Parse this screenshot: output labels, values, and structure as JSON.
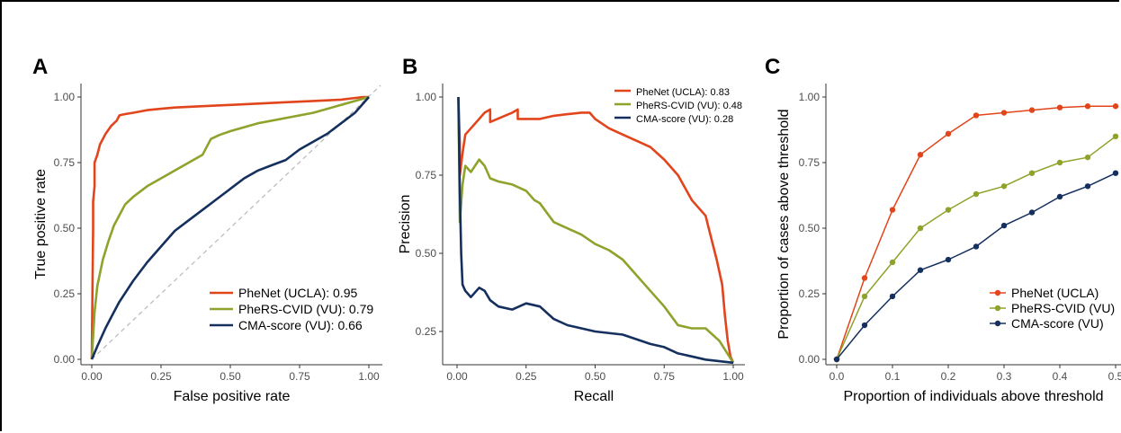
{
  "colors": {
    "phenet": "#e2451c",
    "pherscvid": "#8ea32b",
    "cma": "#15305e",
    "diag": "#bdbdbd"
  },
  "chart_data": [
    {
      "panel": "A",
      "type": "line",
      "xlabel": "False positive rate",
      "ylabel": "True positive rate",
      "xlim": [
        0,
        1
      ],
      "ylim": [
        0,
        1
      ],
      "xticks": [
        "0.00",
        "0.25",
        "0.50",
        "0.75",
        "1.00"
      ],
      "yticks": [
        "0.00",
        "0.25",
        "0.50",
        "0.75",
        "1.00"
      ],
      "legend_position": "bottom-right",
      "reference_line": "diagonal dashed",
      "series": [
        {
          "name": "PheNet (UCLA): 0.95",
          "color": "#e2451c",
          "x": [
            0,
            0.005,
            0.005,
            0.01,
            0.01,
            0.02,
            0.03,
            0.05,
            0.07,
            0.09,
            0.1,
            0.12,
            0.15,
            0.2,
            0.25,
            0.3,
            0.4,
            0.5,
            0.6,
            0.7,
            0.8,
            0.9,
            0.98,
            1.0
          ],
          "y": [
            0,
            0.5,
            0.6,
            0.66,
            0.75,
            0.78,
            0.82,
            0.86,
            0.89,
            0.91,
            0.93,
            0.935,
            0.94,
            0.95,
            0.955,
            0.96,
            0.965,
            0.97,
            0.975,
            0.98,
            0.985,
            0.99,
            1.0,
            1.0
          ]
        },
        {
          "name": "PheRS-CVID (VU): 0.79",
          "color": "#8ea32b",
          "x": [
            0,
            0.01,
            0.02,
            0.04,
            0.06,
            0.08,
            0.1,
            0.12,
            0.15,
            0.2,
            0.25,
            0.3,
            0.35,
            0.4,
            0.43,
            0.46,
            0.5,
            0.6,
            0.7,
            0.8,
            0.9,
            1.0
          ],
          "y": [
            0,
            0.18,
            0.28,
            0.38,
            0.45,
            0.51,
            0.55,
            0.59,
            0.62,
            0.66,
            0.69,
            0.72,
            0.75,
            0.78,
            0.84,
            0.855,
            0.87,
            0.9,
            0.92,
            0.94,
            0.97,
            1.0
          ]
        },
        {
          "name": "CMA-score (VU): 0.66",
          "color": "#15305e",
          "x": [
            0,
            0.02,
            0.05,
            0.08,
            0.1,
            0.15,
            0.2,
            0.25,
            0.3,
            0.35,
            0.4,
            0.45,
            0.5,
            0.55,
            0.6,
            0.65,
            0.7,
            0.75,
            0.8,
            0.85,
            0.9,
            0.95,
            1.0
          ],
          "y": [
            0,
            0.05,
            0.12,
            0.18,
            0.22,
            0.3,
            0.37,
            0.43,
            0.49,
            0.53,
            0.57,
            0.61,
            0.65,
            0.69,
            0.72,
            0.74,
            0.76,
            0.8,
            0.83,
            0.86,
            0.9,
            0.94,
            1.0
          ]
        }
      ]
    },
    {
      "panel": "B",
      "type": "line",
      "xlabel": "Recall",
      "ylabel": "Precision",
      "xlim": [
        0,
        1
      ],
      "ylim": [
        0.15,
        1
      ],
      "xticks": [
        "0.00",
        "0.25",
        "0.50",
        "0.75",
        "1.00"
      ],
      "yticks": [
        "0.25",
        "0.50",
        "0.75",
        "1.00"
      ],
      "legend_position": "top-right",
      "series": [
        {
          "name": "PheNet (UCLA): 0.83",
          "color": "#e2451c",
          "x": [
            0.005,
            0.01,
            0.01,
            0.02,
            0.03,
            0.05,
            0.08,
            0.1,
            0.12,
            0.12,
            0.2,
            0.22,
            0.22,
            0.3,
            0.35,
            0.4,
            0.45,
            0.48,
            0.5,
            0.55,
            0.6,
            0.65,
            0.7,
            0.75,
            0.8,
            0.85,
            0.9,
            0.92,
            0.94,
            0.96,
            0.97,
            0.98,
            0.99,
            1.0
          ],
          "y": [
            1.0,
            0.85,
            0.75,
            0.82,
            0.88,
            0.9,
            0.93,
            0.95,
            0.96,
            0.92,
            0.95,
            0.96,
            0.93,
            0.93,
            0.94,
            0.945,
            0.95,
            0.95,
            0.93,
            0.9,
            0.88,
            0.86,
            0.84,
            0.8,
            0.75,
            0.67,
            0.62,
            0.55,
            0.48,
            0.4,
            0.3,
            0.22,
            0.17,
            0.15
          ]
        },
        {
          "name": "PheRS-CVID (VU): 0.48",
          "color": "#8ea32b",
          "x": [
            0.005,
            0.01,
            0.02,
            0.03,
            0.05,
            0.08,
            0.1,
            0.12,
            0.15,
            0.2,
            0.25,
            0.28,
            0.3,
            0.35,
            0.4,
            0.45,
            0.5,
            0.55,
            0.6,
            0.65,
            0.7,
            0.75,
            0.8,
            0.85,
            0.9,
            0.95,
            1.0
          ],
          "y": [
            1.0,
            0.6,
            0.72,
            0.78,
            0.76,
            0.8,
            0.78,
            0.74,
            0.73,
            0.72,
            0.7,
            0.67,
            0.66,
            0.6,
            0.58,
            0.56,
            0.53,
            0.51,
            0.48,
            0.43,
            0.38,
            0.33,
            0.27,
            0.26,
            0.26,
            0.22,
            0.15
          ]
        },
        {
          "name": "CMA-score (VU): 0.28",
          "color": "#15305e",
          "x": [
            0.005,
            0.01,
            0.015,
            0.02,
            0.03,
            0.05,
            0.08,
            0.1,
            0.12,
            0.15,
            0.2,
            0.25,
            0.3,
            0.35,
            0.4,
            0.5,
            0.6,
            0.7,
            0.75,
            0.8,
            0.85,
            0.9,
            0.95,
            1.0
          ],
          "y": [
            1.0,
            0.7,
            0.5,
            0.4,
            0.38,
            0.36,
            0.39,
            0.38,
            0.35,
            0.33,
            0.32,
            0.34,
            0.33,
            0.29,
            0.27,
            0.25,
            0.24,
            0.21,
            0.2,
            0.18,
            0.17,
            0.16,
            0.155,
            0.15
          ]
        }
      ]
    },
    {
      "panel": "C",
      "type": "line",
      "markers": true,
      "xlabel": "Proportion of individuals above threshold",
      "ylabel": "Proportion of cases above threshold",
      "xlim": [
        0,
        0.5
      ],
      "ylim": [
        0,
        1
      ],
      "xticks": [
        "0.0",
        "0.1",
        "0.2",
        "0.3",
        "0.4",
        "0.5"
      ],
      "yticks": [
        "0.00",
        "0.25",
        "0.50",
        "0.75",
        "1.00"
      ],
      "legend_position": "bottom-right",
      "x": [
        0,
        0.05,
        0.1,
        0.15,
        0.2,
        0.25,
        0.3,
        0.35,
        0.4,
        0.45,
        0.5
      ],
      "series": [
        {
          "name": "PheNet (UCLA)",
          "color": "#e2451c",
          "values": [
            0,
            0.31,
            0.57,
            0.78,
            0.86,
            0.93,
            0.94,
            0.95,
            0.96,
            0.965,
            0.965
          ]
        },
        {
          "name": "PheRS-CVID (VU)",
          "color": "#8ea32b",
          "values": [
            0,
            0.24,
            0.37,
            0.5,
            0.57,
            0.63,
            0.66,
            0.71,
            0.75,
            0.77,
            0.85
          ]
        },
        {
          "name": "CMA-score (VU)",
          "color": "#15305e",
          "values": [
            0,
            0.13,
            0.24,
            0.34,
            0.38,
            0.43,
            0.51,
            0.56,
            0.62,
            0.66,
            0.71
          ]
        }
      ]
    }
  ]
}
